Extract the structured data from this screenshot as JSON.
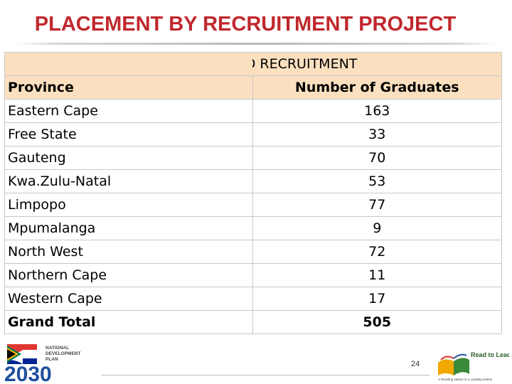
{
  "title": "PLACEMENT BY RECRUITMENT PROJECT",
  "table": {
    "caption": "DISTRICT BASED RECRUITMENT",
    "headers": [
      "Province",
      "Number of Graduates"
    ],
    "rows": [
      [
        "Eastern Cape",
        "163"
      ],
      [
        "Free State",
        "33"
      ],
      [
        "Gauteng",
        "70"
      ],
      [
        "Kwa.Zulu-Natal",
        "53"
      ],
      [
        "Limpopo",
        "77"
      ],
      [
        "Mpumalanga",
        "9"
      ],
      [
        "North West",
        "72"
      ],
      [
        "Northern Cape",
        "11"
      ],
      [
        "Western Cape",
        "17"
      ]
    ],
    "total": [
      "Grand Total",
      "505"
    ]
  },
  "footer": {
    "page_number": "24",
    "ndp_logo": {
      "text_lines": [
        "NATIONAL",
        "DEVELOPMENT",
        "PLAN"
      ],
      "year": "2030"
    },
    "rtl_logo": {
      "tagline": "Read to Lead",
      "subtext": "A Reading Nation is a Leading Nation"
    }
  },
  "colors": {
    "title": "#c0282d",
    "header_fill": "#fbe0c0",
    "grid": "#c8c8c8",
    "ndp_blue": "#1f4e9c"
  }
}
